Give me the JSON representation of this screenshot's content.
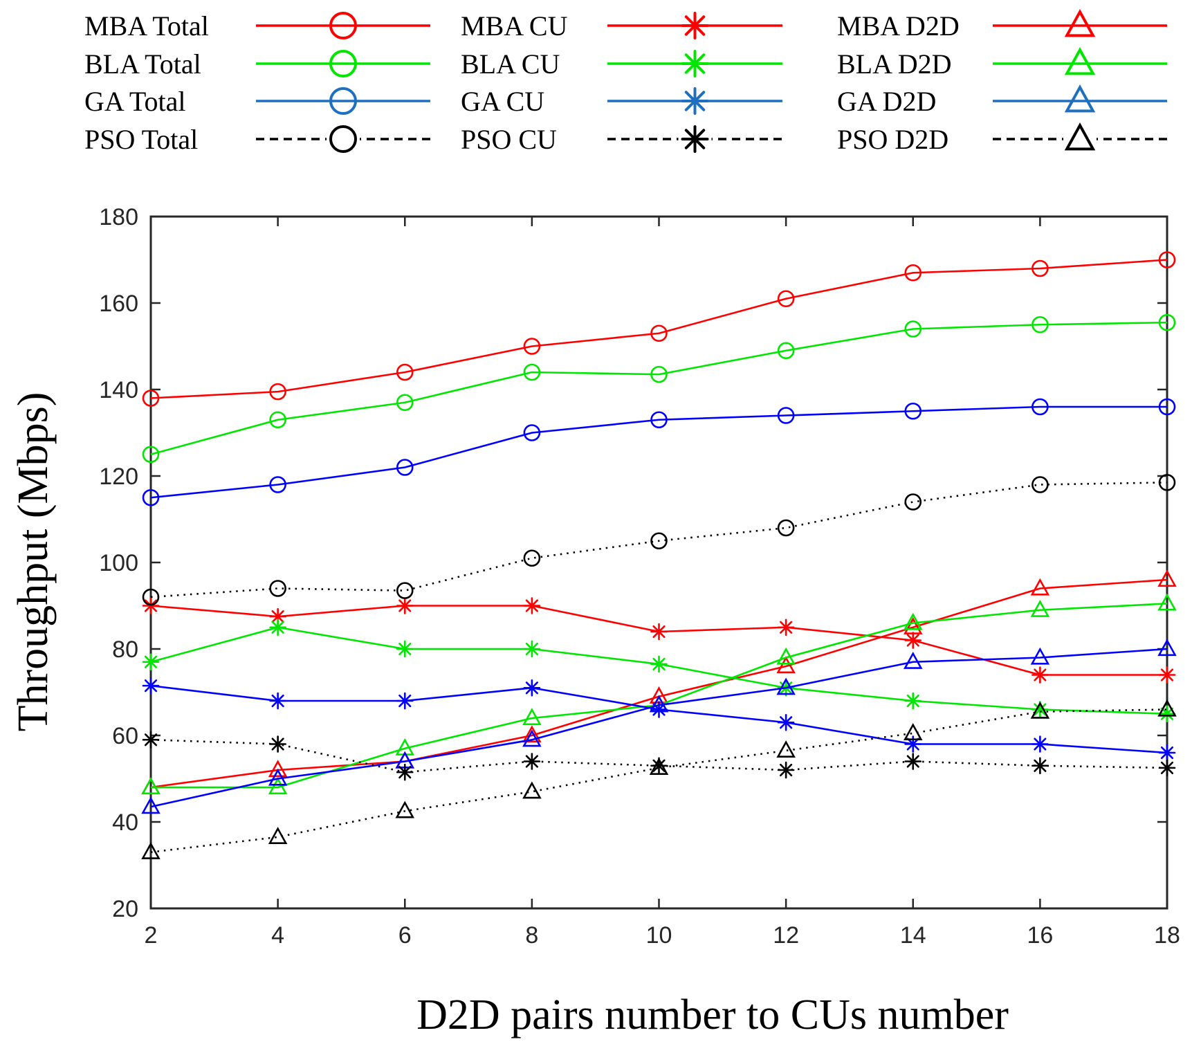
{
  "chart_data": {
    "type": "line",
    "title": "",
    "xlabel": "D2D pairs number to CUs number",
    "ylabel": "Throughput (Mbps)",
    "x": [
      2,
      4,
      6,
      8,
      10,
      12,
      14,
      16,
      18
    ],
    "xlim": [
      2,
      18
    ],
    "ylim": [
      20,
      180
    ],
    "xticks": [
      "2",
      "4",
      "6",
      "8",
      "10",
      "12",
      "14",
      "16",
      "18"
    ],
    "yticks": [
      "20",
      "40",
      "60",
      "80",
      "100",
      "120",
      "140",
      "160",
      "180"
    ],
    "grid": false,
    "legend_position": "top",
    "series": [
      {
        "name": "MBA Total",
        "color": "#ff0000",
        "marker": "circle",
        "dash": "solid",
        "values": [
          138,
          139.5,
          144,
          150,
          153,
          161,
          167,
          168,
          170
        ]
      },
      {
        "name": "MBA CU",
        "color": "#ff0000",
        "marker": "asterisk",
        "dash": "solid",
        "values": [
          90,
          87.5,
          90,
          90,
          84,
          85,
          82,
          74,
          74
        ]
      },
      {
        "name": "MBA D2D",
        "color": "#ff0000",
        "marker": "triangle",
        "dash": "solid",
        "values": [
          48,
          52,
          54,
          60,
          69,
          76,
          85,
          94,
          96
        ]
      },
      {
        "name": "BLA Total",
        "color": "#00e600",
        "marker": "circle",
        "dash": "solid",
        "values": [
          125,
          133,
          137,
          144,
          143.5,
          149,
          154,
          155,
          155.5
        ]
      },
      {
        "name": "BLA CU",
        "color": "#00e600",
        "marker": "asterisk",
        "dash": "solid",
        "values": [
          77,
          85,
          80,
          80,
          76.5,
          71,
          68,
          66,
          65
        ]
      },
      {
        "name": "BLA D2D",
        "color": "#00e600",
        "marker": "triangle",
        "dash": "solid",
        "values": [
          48,
          48,
          57,
          64,
          67,
          78,
          86,
          89,
          90.5
        ]
      },
      {
        "name": "GA Total",
        "color": "#0000ff",
        "marker": "circle",
        "dash": "solid",
        "values": [
          115,
          118,
          122,
          130,
          133,
          134,
          135,
          136,
          136
        ]
      },
      {
        "name": "GA CU",
        "color": "#0000ff",
        "marker": "asterisk",
        "dash": "solid",
        "values": [
          71.5,
          68,
          68,
          71,
          66,
          63,
          58,
          58,
          56
        ]
      },
      {
        "name": "GA D2D",
        "color": "#0000ff",
        "marker": "triangle",
        "dash": "solid",
        "values": [
          43.5,
          50,
          54,
          59,
          67,
          71,
          77,
          78,
          80
        ]
      },
      {
        "name": "PSO Total",
        "color": "#000000",
        "marker": "circle",
        "dash": "dotted",
        "values": [
          92,
          94,
          93.5,
          101,
          105,
          108,
          114,
          118,
          118.5
        ]
      },
      {
        "name": "PSO CU",
        "color": "#000000",
        "marker": "asterisk",
        "dash": "dotted",
        "values": [
          59,
          58,
          51.5,
          54,
          53,
          52,
          54,
          53,
          52.5
        ]
      },
      {
        "name": "PSO D2D",
        "color": "#000000",
        "marker": "triangle",
        "dash": "dotted",
        "values": [
          33,
          36.5,
          42.5,
          47,
          52.5,
          56.5,
          60.5,
          65.5,
          66
        ]
      }
    ]
  },
  "legend": [
    {
      "label": "MBA Total",
      "color": "#ff0000",
      "marker": "circle",
      "dash": "solid"
    },
    {
      "label": "MBA CU",
      "color": "#ff0000",
      "marker": "asterisk",
      "dash": "solid"
    },
    {
      "label": "MBA D2D",
      "color": "#ff0000",
      "marker": "triangle",
      "dash": "solid"
    },
    {
      "label": "BLA Total",
      "color": "#00e600",
      "marker": "circle",
      "dash": "solid"
    },
    {
      "label": "BLA CU",
      "color": "#00e600",
      "marker": "asterisk",
      "dash": "solid"
    },
    {
      "label": "BLA D2D",
      "color": "#00e600",
      "marker": "triangle",
      "dash": "solid"
    },
    {
      "label": "GA Total",
      "color": "#1f6fc1",
      "marker": "circle",
      "dash": "solid"
    },
    {
      "label": "GA CU",
      "color": "#1f6fc1",
      "marker": "asterisk",
      "dash": "solid"
    },
    {
      "label": "GA D2D",
      "color": "#1f6fc1",
      "marker": "triangle",
      "dash": "solid"
    },
    {
      "label": "PSO Total",
      "color": "#000000",
      "marker": "circle",
      "dash": "dashed"
    },
    {
      "label": "PSO CU",
      "color": "#000000",
      "marker": "asterisk",
      "dash": "dashed"
    },
    {
      "label": "PSO D2D",
      "color": "#000000",
      "marker": "triangle",
      "dash": "dashed"
    }
  ]
}
